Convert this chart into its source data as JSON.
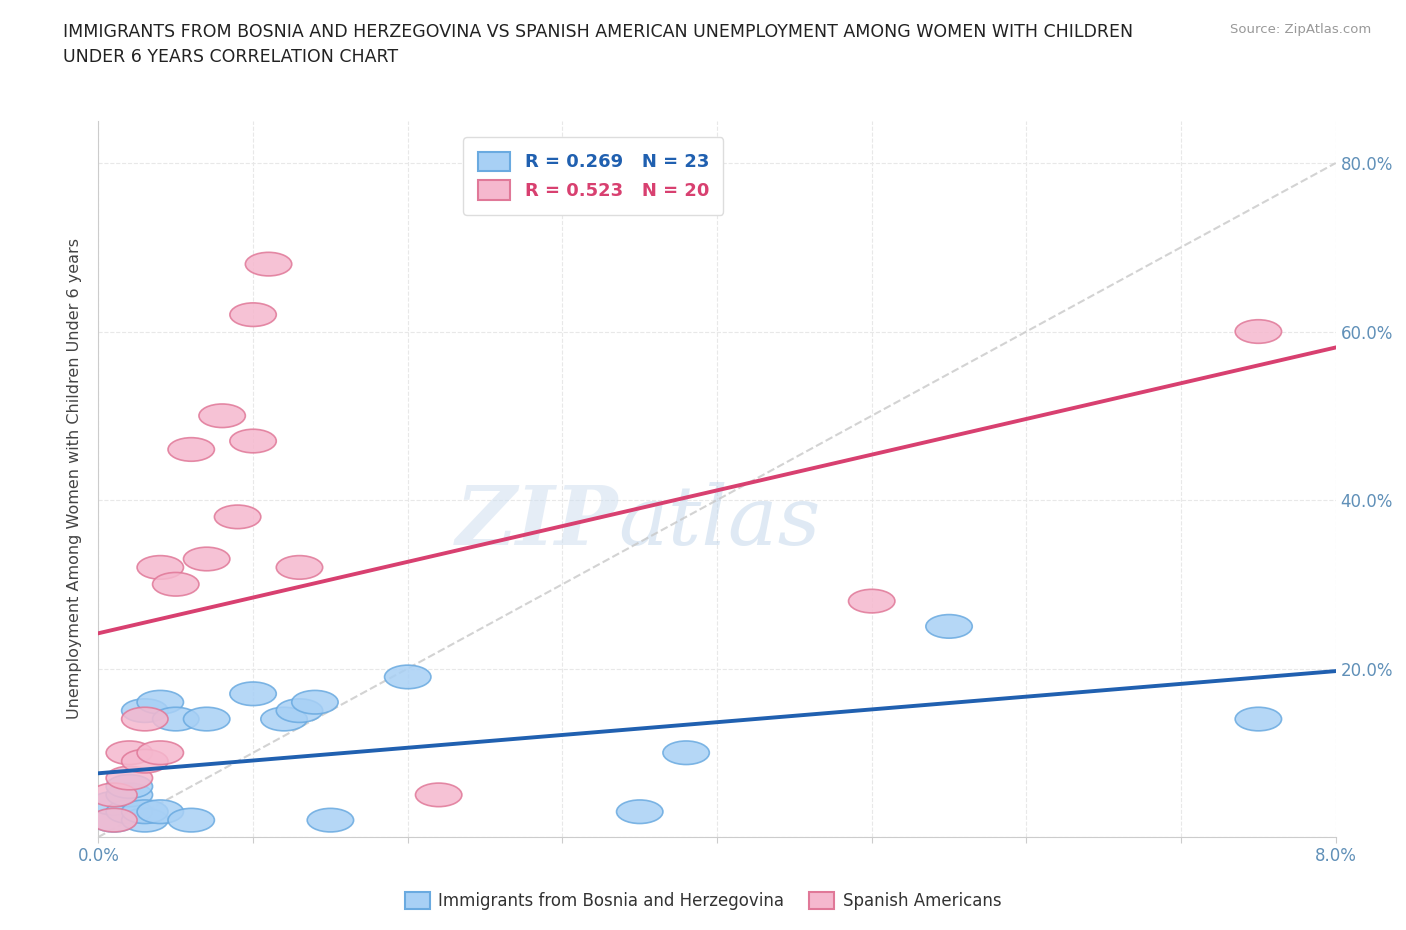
{
  "title": "IMMIGRANTS FROM BOSNIA AND HERZEGOVINA VS SPANISH AMERICAN UNEMPLOYMENT AMONG WOMEN WITH CHILDREN\nUNDER 6 YEARS CORRELATION CHART",
  "source": "Source: ZipAtlas.com",
  "ylabel": "Unemployment Among Women with Children Under 6 years",
  "xlim": [
    0.0,
    0.08
  ],
  "ylim": [
    0.0,
    0.85
  ],
  "ytick_vals": [
    0.0,
    0.2,
    0.4,
    0.6,
    0.8
  ],
  "xtick_vals": [
    0.0,
    0.01,
    0.02,
    0.03,
    0.04,
    0.05,
    0.06,
    0.07,
    0.08
  ],
  "bosnia_color": "#a8d0f5",
  "bosnia_edge_color": "#6aaae0",
  "spanish_color": "#f5b8ce",
  "spanish_edge_color": "#e07898",
  "bosnia_line_color": "#2060b0",
  "spanish_line_color": "#d84070",
  "R_bosnia": 0.269,
  "N_bosnia": 23,
  "R_spanish": 0.523,
  "N_spanish": 20,
  "bosnia_x": [
    0.001,
    0.001,
    0.002,
    0.002,
    0.002,
    0.003,
    0.003,
    0.003,
    0.004,
    0.004,
    0.005,
    0.006,
    0.007,
    0.01,
    0.012,
    0.013,
    0.014,
    0.015,
    0.02,
    0.035,
    0.038,
    0.055,
    0.075
  ],
  "bosnia_y": [
    0.02,
    0.04,
    0.03,
    0.05,
    0.06,
    0.02,
    0.03,
    0.15,
    0.03,
    0.16,
    0.14,
    0.02,
    0.14,
    0.17,
    0.14,
    0.15,
    0.16,
    0.02,
    0.19,
    0.03,
    0.1,
    0.25,
    0.14
  ],
  "spanish_x": [
    0.001,
    0.001,
    0.002,
    0.002,
    0.003,
    0.003,
    0.004,
    0.004,
    0.005,
    0.006,
    0.007,
    0.008,
    0.009,
    0.01,
    0.01,
    0.011,
    0.013,
    0.022,
    0.05,
    0.075
  ],
  "spanish_y": [
    0.02,
    0.05,
    0.07,
    0.1,
    0.09,
    0.14,
    0.1,
    0.32,
    0.3,
    0.46,
    0.33,
    0.5,
    0.38,
    0.47,
    0.62,
    0.68,
    0.32,
    0.05,
    0.28,
    0.6
  ],
  "legend_label_bosnia": "Immigrants from Bosnia and Herzegovina",
  "legend_label_spanish": "Spanish Americans",
  "watermark_zip": "ZIP",
  "watermark_atlas": "atlas",
  "background_color": "#ffffff",
  "grid_color": "#e8e8e8",
  "grid_style": "--"
}
